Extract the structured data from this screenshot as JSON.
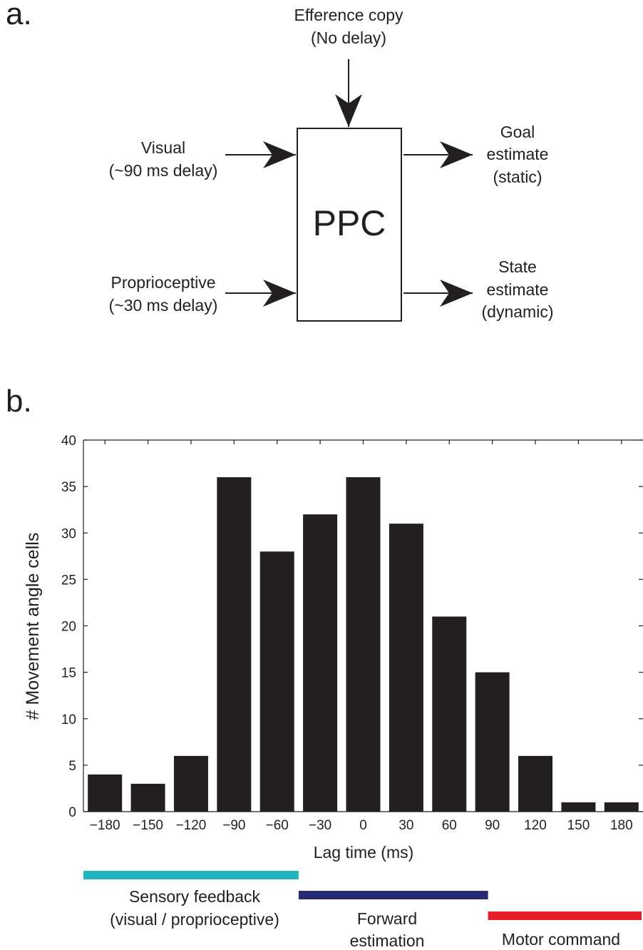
{
  "panel_a": {
    "panel_label": "a.",
    "box_label": "PPC",
    "inputs": {
      "efference": {
        "line1": "Efference copy",
        "line2": "(No delay)"
      },
      "visual": {
        "line1": "Visual",
        "line2": "(~90 ms delay)"
      },
      "proprioceptive": {
        "line1": "Proprioceptive",
        "line2": "(~30 ms delay)"
      }
    },
    "outputs": {
      "goal": {
        "line1": "Goal",
        "line2": "estimate",
        "line3": "(static)"
      },
      "state": {
        "line1": "State",
        "line2": "estimate",
        "line3": "(dynamic)"
      }
    }
  },
  "panel_b": {
    "panel_label": "b.",
    "bands": [
      {
        "line1": "Sensory feedback",
        "line2": "(visual / proprioceptive)",
        "color": "#1fb6c1",
        "from": -195,
        "to": -45
      },
      {
        "line1": "Forward",
        "line2": "estimation",
        "color": "#272a72",
        "from": -45,
        "to": 87
      },
      {
        "line1": "Motor command",
        "line2": "",
        "color": "#e41e26",
        "from": 87,
        "to": 195
      }
    ]
  },
  "chart_data": {
    "type": "bar",
    "categories": [
      "−180",
      "−150",
      "−120",
      "−90",
      "−60",
      "−30",
      "0",
      "30",
      "60",
      "90",
      "120",
      "150",
      "180"
    ],
    "x": [
      -180,
      -150,
      -120,
      -90,
      -60,
      -30,
      0,
      30,
      60,
      90,
      120,
      150,
      180
    ],
    "values": [
      4,
      3,
      6,
      36,
      28,
      32,
      36,
      31,
      21,
      15,
      6,
      1,
      1
    ],
    "title": "",
    "xlabel": "Lag time (ms)",
    "ylabel": "# Movement angle cells",
    "xlim": [
      -195,
      195
    ],
    "ylim": [
      0,
      40
    ],
    "yticks": [
      0,
      5,
      10,
      15,
      20,
      25,
      30,
      35,
      40
    ],
    "bar_color": "#231f20",
    "grid": false,
    "legend": "none"
  }
}
